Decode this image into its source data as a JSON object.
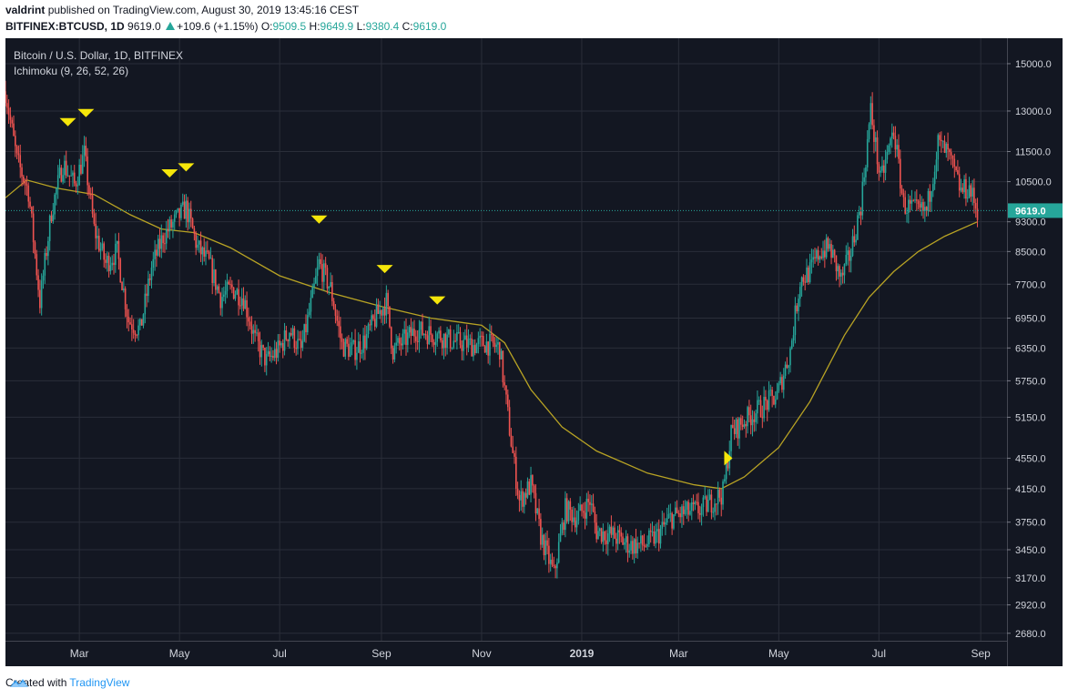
{
  "header": {
    "author": "valdrint",
    "published_text": "published on TradingView.com, August 30, 2019 13:45:16 CEST",
    "symbol": "BITFINEX:BTCUSD, 1D",
    "last": "9619.0",
    "change": "+109.6 (+1.15%)",
    "open_label": "O:",
    "open": "9509.5",
    "high_label": "H:",
    "high": "9649.9",
    "low_label": "L:",
    "low": "9380.4",
    "close_label": "C:",
    "close": "9619.0"
  },
  "legend": {
    "title": "Bitcoin / U.S. Dollar, 1D, BITFINEX",
    "indicator": "Ichimoku (9, 26, 52, 26)"
  },
  "footer": {
    "created_with": "Created with",
    "brand": "TradingView"
  },
  "colors": {
    "background": "#131722",
    "grid": "#2a2e39",
    "up": "#26a69a",
    "down": "#ef5350",
    "ma": "#b8a324",
    "marker": "#f5e60a",
    "price_tag": "#26a69a",
    "axis_text": "#d1d4dc"
  },
  "chart_data": {
    "type": "candlestick",
    "title": "Bitcoin / U.S. Dollar, 1D, BITFINEX",
    "y_scale": "log",
    "ylim": [
      2620,
      16200
    ],
    "xlim": [
      "2018-01-15",
      "2019-09-17"
    ],
    "y_ticks": [
      "15000.0",
      "13000.0",
      "11500.0",
      "10500.0",
      "9300.0",
      "8500.0",
      "7700.0",
      "6950.0",
      "6350.0",
      "5750.0",
      "5150.0",
      "4550.0",
      "4150.0",
      "3750.0",
      "3450.0",
      "3170.0",
      "2920.0",
      "2680.0"
    ],
    "x_ticks": [
      {
        "label": "Mar",
        "date": "2018-03-01",
        "bold": false
      },
      {
        "label": "May",
        "date": "2018-05-01",
        "bold": false
      },
      {
        "label": "Jul",
        "date": "2018-07-01",
        "bold": false
      },
      {
        "label": "Sep",
        "date": "2018-09-01",
        "bold": false
      },
      {
        "label": "Nov",
        "date": "2018-11-01",
        "bold": false
      },
      {
        "label": "2019",
        "date": "2019-01-01",
        "bold": true
      },
      {
        "label": "Mar",
        "date": "2019-03-01",
        "bold": false
      },
      {
        "label": "May",
        "date": "2019-05-01",
        "bold": false
      },
      {
        "label": "Jul",
        "date": "2019-07-01",
        "bold": false
      },
      {
        "label": "Sep",
        "date": "2019-09-01",
        "bold": false
      }
    ],
    "last_price": 9619.0,
    "last_price_label": "9619.0",
    "close_path": [
      [
        "2018-01-15",
        13800
      ],
      [
        "2018-01-22",
        11200
      ],
      [
        "2018-01-29",
        10200
      ],
      [
        "2018-02-05",
        7300
      ],
      [
        "2018-02-12",
        9600
      ],
      [
        "2018-02-19",
        11100
      ],
      [
        "2018-02-26",
        10400
      ],
      [
        "2018-03-04",
        11400
      ],
      [
        "2018-03-10",
        9100
      ],
      [
        "2018-03-17",
        8200
      ],
      [
        "2018-03-24",
        8500
      ],
      [
        "2018-03-31",
        6900
      ],
      [
        "2018-04-07",
        6700
      ],
      [
        "2018-04-14",
        8100
      ],
      [
        "2018-04-21",
        8900
      ],
      [
        "2018-04-28",
        9300
      ],
      [
        "2018-05-05",
        9700
      ],
      [
        "2018-05-12",
        8600
      ],
      [
        "2018-05-19",
        8200
      ],
      [
        "2018-05-26",
        7400
      ],
      [
        "2018-06-02",
        7600
      ],
      [
        "2018-06-09",
        7400
      ],
      [
        "2018-06-16",
        6500
      ],
      [
        "2018-06-23",
        6100
      ],
      [
        "2018-06-30",
        6300
      ],
      [
        "2018-07-07",
        6700
      ],
      [
        "2018-07-14",
        6300
      ],
      [
        "2018-07-21",
        7400
      ],
      [
        "2018-07-25",
        8200
      ],
      [
        "2018-08-01",
        7600
      ],
      [
        "2018-08-08",
        6400
      ],
      [
        "2018-08-15",
        6300
      ],
      [
        "2018-08-22",
        6500
      ],
      [
        "2018-08-29",
        7000
      ],
      [
        "2018-09-04",
        7300
      ],
      [
        "2018-09-08",
        6300
      ],
      [
        "2018-09-15",
        6500
      ],
      [
        "2018-09-22",
        6700
      ],
      [
        "2018-10-06",
        6600
      ],
      [
        "2018-10-13",
        6500
      ],
      [
        "2018-10-20",
        6450
      ],
      [
        "2018-10-27",
        6400
      ],
      [
        "2018-11-03",
        6450
      ],
      [
        "2018-11-12",
        6350
      ],
      [
        "2018-11-15",
        5600
      ],
      [
        "2018-11-20",
        4600
      ],
      [
        "2018-11-24",
        4000
      ],
      [
        "2018-12-01",
        4200
      ],
      [
        "2018-12-07",
        3600
      ],
      [
        "2018-12-15",
        3200
      ],
      [
        "2018-12-22",
        3900
      ],
      [
        "2018-12-29",
        3800
      ],
      [
        "2019-01-06",
        4000
      ],
      [
        "2019-01-10",
        3650
      ],
      [
        "2019-01-20",
        3600
      ],
      [
        "2019-01-30",
        3500
      ],
      [
        "2019-02-08",
        3500
      ],
      [
        "2019-02-16",
        3600
      ],
      [
        "2019-02-24",
        3800
      ],
      [
        "2019-03-03",
        3850
      ],
      [
        "2019-03-15",
        3900
      ],
      [
        "2019-03-28",
        4100
      ],
      [
        "2019-04-02",
        4900
      ],
      [
        "2019-04-10",
        5100
      ],
      [
        "2019-04-20",
        5300
      ],
      [
        "2019-04-30",
        5500
      ],
      [
        "2019-05-08",
        6300
      ],
      [
        "2019-05-14",
        7800
      ],
      [
        "2019-05-20",
        8000
      ],
      [
        "2019-05-26",
        8500
      ],
      [
        "2019-06-01",
        8600
      ],
      [
        "2019-06-08",
        7800
      ],
      [
        "2019-06-14",
        8500
      ],
      [
        "2019-06-20",
        9800
      ],
      [
        "2019-06-26",
        13000
      ],
      [
        "2019-07-02",
        10500
      ],
      [
        "2019-07-10",
        12300
      ],
      [
        "2019-07-16",
        9800
      ],
      [
        "2019-07-24",
        9600
      ],
      [
        "2019-07-30",
        9600
      ],
      [
        "2019-08-06",
        11800
      ],
      [
        "2019-08-12",
        11400
      ],
      [
        "2019-08-20",
        10200
      ],
      [
        "2019-08-25",
        10300
      ],
      [
        "2019-08-30",
        9619
      ]
    ],
    "moving_average": [
      [
        "2018-01-15",
        10000
      ],
      [
        "2018-01-28",
        10550
      ],
      [
        "2018-02-15",
        10300
      ],
      [
        "2018-03-10",
        10100
      ],
      [
        "2018-04-01",
        9500
      ],
      [
        "2018-04-20",
        9100
      ],
      [
        "2018-05-10",
        9000
      ],
      [
        "2018-06-01",
        8600
      ],
      [
        "2018-07-01",
        7900
      ],
      [
        "2018-08-01",
        7500
      ],
      [
        "2018-09-01",
        7200
      ],
      [
        "2018-10-01",
        6950
      ],
      [
        "2018-11-01",
        6800
      ],
      [
        "2018-11-15",
        6450
      ],
      [
        "2018-12-01",
        5600
      ],
      [
        "2018-12-20",
        5000
      ],
      [
        "2019-01-10",
        4650
      ],
      [
        "2019-02-10",
        4350
      ],
      [
        "2019-03-10",
        4200
      ],
      [
        "2019-03-27",
        4150
      ],
      [
        "2019-04-10",
        4300
      ],
      [
        "2019-05-01",
        4700
      ],
      [
        "2019-05-20",
        5400
      ],
      [
        "2019-06-10",
        6600
      ],
      [
        "2019-06-25",
        7400
      ],
      [
        "2019-07-10",
        8000
      ],
      [
        "2019-07-25",
        8500
      ],
      [
        "2019-08-10",
        8900
      ],
      [
        "2019-08-30",
        9300
      ]
    ],
    "markers": [
      {
        "date": "2018-02-22",
        "price": 12550,
        "direction": "down"
      },
      {
        "date": "2018-03-05",
        "price": 12900,
        "direction": "down"
      },
      {
        "date": "2018-04-25",
        "price": 10750,
        "direction": "down"
      },
      {
        "date": "2018-05-05",
        "price": 10950,
        "direction": "down"
      },
      {
        "date": "2018-07-25",
        "price": 9350,
        "direction": "down"
      },
      {
        "date": "2018-09-03",
        "price": 8050,
        "direction": "down"
      },
      {
        "date": "2018-10-05",
        "price": 7320,
        "direction": "down"
      },
      {
        "date": "2019-03-31",
        "price": 4550,
        "direction": "right"
      }
    ]
  }
}
